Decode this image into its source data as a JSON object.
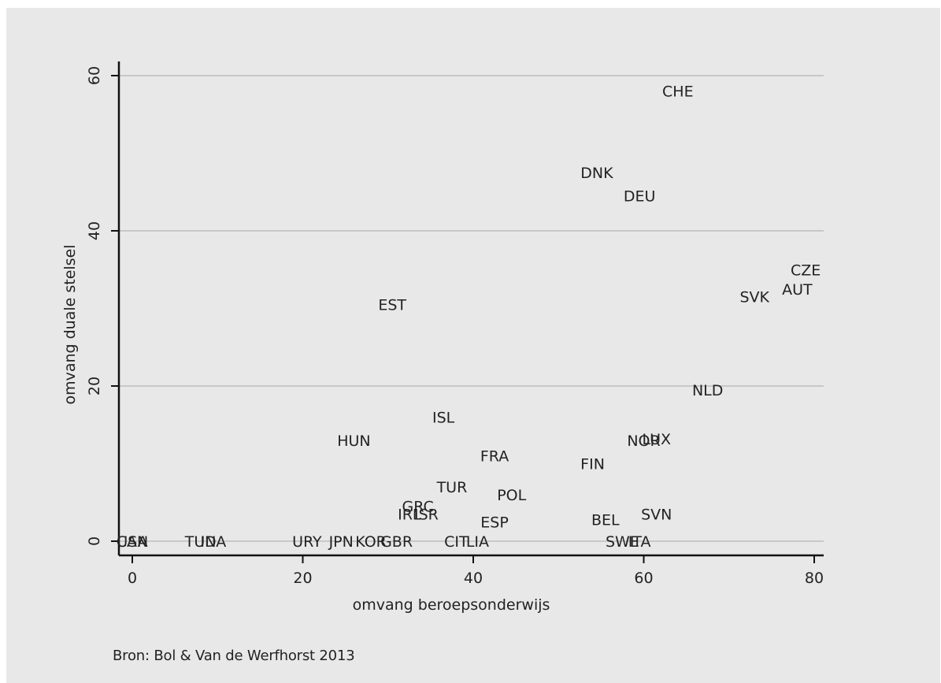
{
  "chart_data": {
    "type": "scatter",
    "marker": "country-code-labels",
    "title": "",
    "xlabel": "omvang beroepsonderwijs",
    "ylabel": "omvang duale stelsel",
    "xlim": [
      0,
      80
    ],
    "ylim": [
      0,
      60
    ],
    "xticks": [
      0,
      20,
      40,
      60,
      80
    ],
    "yticks": [
      0,
      20,
      40,
      60
    ],
    "grid": "horizontal",
    "points": [
      {
        "label": "CHE",
        "x": 64,
        "y": 58
      },
      {
        "label": "DNK",
        "x": 54.5,
        "y": 47.5
      },
      {
        "label": "DEU",
        "x": 59.5,
        "y": 44.5
      },
      {
        "label": "CZE",
        "x": 79,
        "y": 35
      },
      {
        "label": "AUT",
        "x": 78,
        "y": 32.5
      },
      {
        "label": "SVK",
        "x": 73,
        "y": 31.5
      },
      {
        "label": "EST",
        "x": 30.5,
        "y": 30.5
      },
      {
        "label": "NLD",
        "x": 67.5,
        "y": 19.5
      },
      {
        "label": "ISL",
        "x": 36.5,
        "y": 16
      },
      {
        "label": "LUX",
        "x": 61.5,
        "y": 13.2
      },
      {
        "label": "NOR",
        "x": 60,
        "y": 13
      },
      {
        "label": "HUN",
        "x": 26,
        "y": 13
      },
      {
        "label": "FRA",
        "x": 42.5,
        "y": 11
      },
      {
        "label": "FIN",
        "x": 54,
        "y": 10
      },
      {
        "label": "TUR",
        "x": 37.5,
        "y": 7
      },
      {
        "label": "POL",
        "x": 44.5,
        "y": 6
      },
      {
        "label": "GRC",
        "x": 33.5,
        "y": 4.5
      },
      {
        "label": "ISR",
        "x": 34.5,
        "y": 3.5
      },
      {
        "label": "IRL",
        "x": 32.5,
        "y": 3.5
      },
      {
        "label": "SVN",
        "x": 61.5,
        "y": 3.5
      },
      {
        "label": "BEL",
        "x": 55.5,
        "y": 2.8
      },
      {
        "label": "ESP",
        "x": 42.5,
        "y": 2.5
      },
      {
        "label": "CAN",
        "x": 0,
        "y": 0
      },
      {
        "label": "USA",
        "x": 0,
        "y": 0
      },
      {
        "label": "TUN",
        "x": 8,
        "y": 0
      },
      {
        "label": "IDA",
        "x": 9.5,
        "y": 0
      },
      {
        "label": "URY",
        "x": 20.5,
        "y": 0
      },
      {
        "label": "JPN",
        "x": 24.5,
        "y": 0
      },
      {
        "label": "KOR",
        "x": 28,
        "y": 0
      },
      {
        "label": "GBR",
        "x": 31,
        "y": 0
      },
      {
        "label": "CIT",
        "x": 38,
        "y": 0
      },
      {
        "label": "LIA",
        "x": 40.5,
        "y": 0
      },
      {
        "label": "SWE",
        "x": 57.5,
        "y": 0
      },
      {
        "label": "ITA",
        "x": 59.5,
        "y": 0
      }
    ]
  },
  "footer": {
    "source": "Bron: Bol & Van de Werfhorst 2013"
  },
  "colors": {
    "panel_background": "#e8e8e8",
    "grid": "#c8c8c8",
    "axis": "#111111",
    "text": "#222222"
  }
}
